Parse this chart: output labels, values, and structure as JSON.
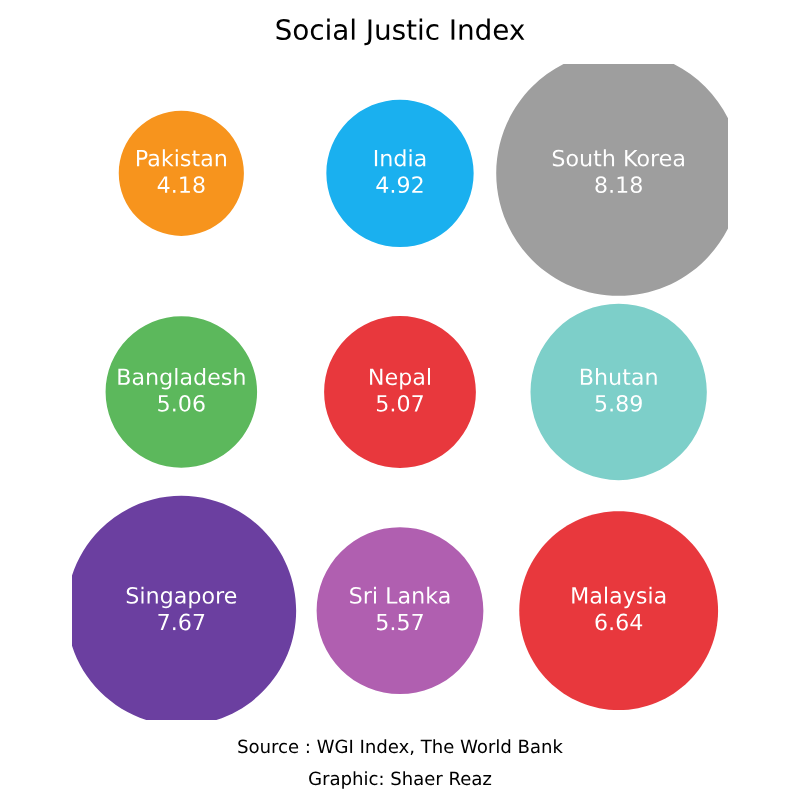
{
  "chart_data": {
    "type": "other",
    "title": "Social Justic Index",
    "categories": [
      "Pakistan",
      "India",
      "South Korea",
      "Bangladesh",
      "Nepal",
      "Bhutan",
      "Singapore",
      "Sri Lanka",
      "Malaysia"
    ],
    "values": [
      4.18,
      4.92,
      8.18,
      5.06,
      5.07,
      5.89,
      7.67,
      5.57,
      6.64
    ],
    "colors": [
      "#f7941d",
      "#1ab0ef",
      "#9e9e9e",
      "#5cb85c",
      "#e8383d",
      "#7dcfc9",
      "#6b3fa0",
      "#b05fb0",
      "#e8383d"
    ],
    "data_labels": true,
    "annotations": [
      "Source : WGI Index, The World Bank",
      "Graphic: Shaer Reaz"
    ]
  }
}
